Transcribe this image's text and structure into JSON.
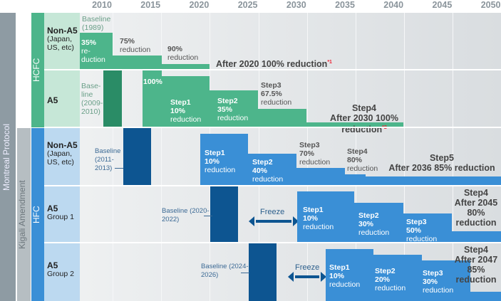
{
  "axis": {
    "years": [
      "2010",
      "2015",
      "2020",
      "2025",
      "2030",
      "2035",
      "2040",
      "2045",
      "2050"
    ]
  },
  "sections": {
    "protocol": "Montreal Protocol",
    "amendment": "Kigali Amendment",
    "hcfc": "HCFC",
    "hfc": "HFC"
  },
  "colors": {
    "hcfc": "#4db58b",
    "hcfc_baseline": "#2a8c66",
    "hfc": "#3a8fd6",
    "hfc_baseline": "#0d5591",
    "note_mark": "#e22233"
  },
  "rows": {
    "hcfc_non_a5": {
      "title": "Non-A5",
      "sub": "(Japan, US, etc)",
      "baseline": "Baseline (1989)",
      "s1a": "35%",
      "s1b": "re-",
      "s1c": "duction",
      "s2a": "75%",
      "s2b": "reduction",
      "s3a": "90%",
      "s3b": "reduction",
      "final": "After 2020 100% reduction",
      "note": "*1"
    },
    "hcfc_a5": {
      "title": "A5",
      "baseline": "Base-line (2009-2010)",
      "start": "100%",
      "s1a": "Step1",
      "s1b": "10%",
      "s1c": "reduction",
      "s2a": "Step2",
      "s2b": "35%",
      "s2c": "reduction",
      "s3a": "Step3",
      "s3b": "67.5%",
      "s3c": "reduction",
      "s4a": "Step4",
      "s4b": "After 2030 100% reduction",
      "note": "*2"
    },
    "hfc_non_a5": {
      "title": "Non-A5",
      "sub": "(Japan, US, etc)",
      "baseline": "Baseline (2011-2013)",
      "s1a": "Step1",
      "s1b": "10%",
      "s1c": "reduction",
      "s2a": "Step2",
      "s2b": "40%",
      "s2c": "reduction",
      "s3a": "Step3",
      "s3b": "70%",
      "s3c": "reduction",
      "s4a": "Step4",
      "s4b": "80%",
      "s4c": "reduction",
      "s5a": "Step5",
      "s5b": "After 2036 85% reduction"
    },
    "hfc_a5_g1": {
      "title": "A5",
      "sub": "Group 1",
      "baseline": "Baseline (2020-2022)",
      "freeze": "Freeze",
      "s1a": "Step1",
      "s1b": "10%",
      "s1c": "reduction",
      "s2a": "Step2",
      "s2b": "30%",
      "s2c": "reduction",
      "s3a": "Step3",
      "s3b": "50%",
      "s3c": "reduction",
      "s4a": "Step4",
      "s4b": "After 2045",
      "s4c": "80%",
      "s4d": "reduction"
    },
    "hfc_a5_g2": {
      "title": "A5",
      "sub": "Group 2",
      "baseline": "Baseline (2024-2026)",
      "freeze": "Freeze",
      "s1a": "Step1",
      "s1b": "10%",
      "s1c": "reduction",
      "s2a": "Step2",
      "s2b": "20%",
      "s2c": "reduction",
      "s3a": "Step3",
      "s3b": "30%",
      "s3c": "reduction",
      "s4a": "Step4",
      "s4b": "After 2047",
      "s4c": "85%",
      "s4d": "reduction"
    }
  }
}
